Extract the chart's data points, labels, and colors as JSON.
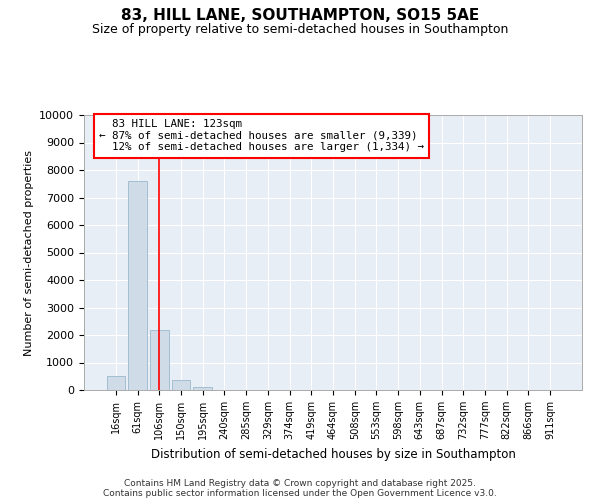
{
  "title": "83, HILL LANE, SOUTHAMPTON, SO15 5AE",
  "subtitle": "Size of property relative to semi-detached houses in Southampton",
  "xlabel": "Distribution of semi-detached houses by size in Southampton",
  "ylabel": "Number of semi-detached properties",
  "bin_labels": [
    "16sqm",
    "61sqm",
    "106sqm",
    "150sqm",
    "195sqm",
    "240sqm",
    "285sqm",
    "329sqm",
    "374sqm",
    "419sqm",
    "464sqm",
    "508sqm",
    "553sqm",
    "598sqm",
    "643sqm",
    "687sqm",
    "732sqm",
    "777sqm",
    "822sqm",
    "866sqm",
    "911sqm"
  ],
  "bar_values": [
    500,
    7600,
    2200,
    380,
    100,
    0,
    0,
    0,
    0,
    0,
    0,
    0,
    0,
    0,
    0,
    0,
    0,
    0,
    0,
    0,
    0
  ],
  "bar_color": "#cfdce8",
  "bar_edge_color": "#9ab8cc",
  "property_line_x": 2.0,
  "annotation_label": "83 HILL LANE: 123sqm",
  "pct_smaller": "87%",
  "n_smaller": "9,339",
  "pct_larger": "12%",
  "n_larger": "1,334",
  "ylim": [
    0,
    10000
  ],
  "yticks": [
    0,
    1000,
    2000,
    3000,
    4000,
    5000,
    6000,
    7000,
    8000,
    9000,
    10000
  ],
  "fig_bg": "#ffffff",
  "plot_bg": "#e8eef5",
  "grid_color": "#ffffff",
  "footer_line1": "Contains HM Land Registry data © Crown copyright and database right 2025.",
  "footer_line2": "Contains public sector information licensed under the Open Government Licence v3.0."
}
